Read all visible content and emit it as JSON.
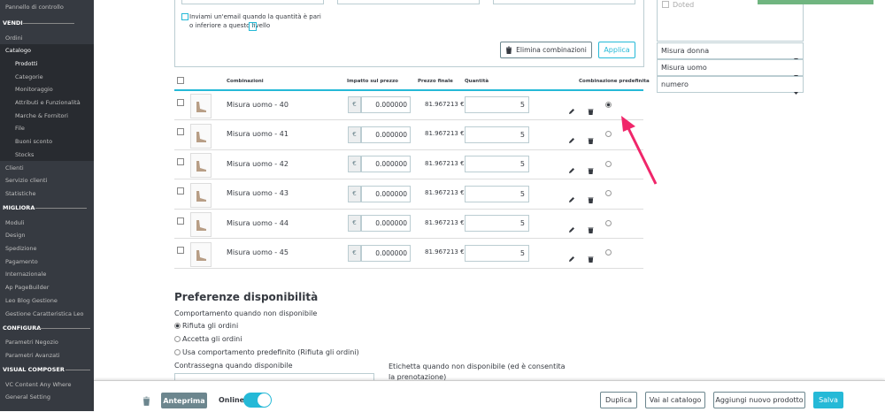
{
  "sidebar": {
    "dashboard": "Pannello di controllo",
    "sections": [
      {
        "title": "VENDI",
        "items": [
          {
            "label": "Ordini"
          },
          {
            "label": "Catalogo",
            "active": true,
            "children": [
              {
                "label": "Prodotti",
                "active": true
              },
              {
                "label": "Categorie"
              },
              {
                "label": "Monitoraggio"
              },
              {
                "label": "Attributi e Funzionalità"
              },
              {
                "label": "Marche & Fornitori"
              },
              {
                "label": "File"
              },
              {
                "label": "Buoni sconto"
              },
              {
                "label": "Stocks"
              }
            ]
          },
          {
            "label": "Clienti"
          },
          {
            "label": "Servizio clienti"
          },
          {
            "label": "Statistiche"
          }
        ]
      },
      {
        "title": "MIGLIORA",
        "items": [
          {
            "label": "Moduli"
          },
          {
            "label": "Design"
          },
          {
            "label": "Spedizione"
          },
          {
            "label": "Pagamento"
          },
          {
            "label": "Internazionale"
          },
          {
            "label": "Ap PageBuilder"
          },
          {
            "label": "Leo Blog Gestione"
          },
          {
            "label": "Gestione Caratteristica Leo"
          }
        ]
      },
      {
        "title": "CONFIGURA",
        "items": [
          {
            "label": "Parametri Negozio"
          },
          {
            "label": "Parametri Avanzati"
          }
        ]
      },
      {
        "title": "VISUAL COMPOSER",
        "items": [
          {
            "label": "VC Content Any Where"
          },
          {
            "label": "General Setting"
          }
        ]
      }
    ]
  },
  "quantity_alert": {
    "label": "Inviami un'email quando la quantità è pari o inferiore a questo livello",
    "help": "?"
  },
  "actions": {
    "delete": "Elimina combinazioni",
    "apply": "Applica"
  },
  "table": {
    "headers": [
      "Combinazioni",
      "Impatto sul prezzo",
      "Prezzo finale",
      "Quantità",
      "Combinazione predefinita"
    ],
    "rows": [
      {
        "name": "Misura uomo - 40",
        "currency": "€",
        "impact": "0.000000",
        "final_price": "81.967213 €",
        "quantity": 5,
        "default": true
      },
      {
        "name": "Misura uomo - 41",
        "currency": "€",
        "impact": "0.000000",
        "final_price": "81.967213 €",
        "quantity": 5,
        "default": false
      },
      {
        "name": "Misura uomo - 42",
        "currency": "€",
        "impact": "0.000000",
        "final_price": "81.967213 €",
        "quantity": 5,
        "default": false
      },
      {
        "name": "Misura uomo - 43",
        "currency": "€",
        "impact": "0.000000",
        "final_price": "81.967213 €",
        "quantity": 5,
        "default": false
      },
      {
        "name": "Misura uomo - 44",
        "currency": "€",
        "impact": "0.000000",
        "final_price": "81.967213 €",
        "quantity": 5,
        "default": false
      },
      {
        "name": "Misura uomo - 45",
        "currency": "€",
        "impact": "0.000000",
        "final_price": "81.967213 €",
        "quantity": 5,
        "default": false
      }
    ]
  },
  "availability": {
    "title": "Preferenze disponibilità",
    "behavior_label": "Comportamento quando non disponibile",
    "options": [
      {
        "label": "Rifiuta gli ordini",
        "checked": true
      },
      {
        "label": "Accetta gli ordini",
        "checked": false
      },
      {
        "label": "Usa comportamento predefinito (Rifiuta gli ordini)",
        "checked": false
      }
    ],
    "in_stock_label": "Contrassegna quando disponibile",
    "out_of_stock_label": "Etichetta quando non disponibile (ed è consentita la prenotazione)"
  },
  "right_panel": {
    "option": "Doted",
    "selects": [
      "Misura donna",
      "Misura uomo",
      "numero"
    ]
  },
  "footer": {
    "preview": "Anteprima",
    "online": "Online",
    "duplicate": "Duplica",
    "catalog": "Vai al catalogo",
    "add": "Aggiungi nuovo prodotto",
    "save": "Salva"
  }
}
